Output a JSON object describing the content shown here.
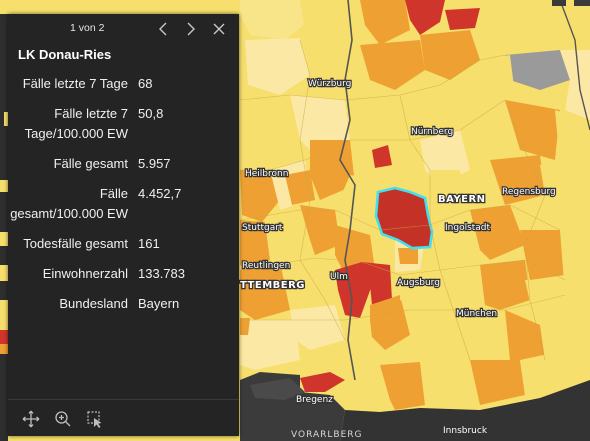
{
  "map": {
    "labels": {
      "wurzburg": "Würzburg",
      "nurnberg": "Nürnberg",
      "heilbronn": "Heilbronn",
      "bayern": "BAYERN",
      "regensburg": "Regensburg",
      "stuttgart": "Stuttgart",
      "ingolstadt": "Ingolstadt",
      "reutlingen": "Reutlingen",
      "ulm": "Ulm",
      "augsburg": "Augsburg",
      "wurttemberg": "TTEMBERG",
      "munchen": "München",
      "bregenz": "Bregenz",
      "vorarlberg": "VORARLBERG",
      "innsbruck": "Innsbruck"
    },
    "colors": {
      "pale": "#fbe8a4",
      "light": "#f6df6c",
      "orange": "#efa032",
      "red": "#d0352b",
      "grey": "#9a9a9a",
      "highlight": "#40e0f0"
    }
  },
  "popup": {
    "pager": "1 von 2",
    "title": "LK Donau-Ries",
    "rows": [
      {
        "key": "Fälle letzte 7 Tage",
        "value": "68"
      },
      {
        "key": "Fälle letzte 7 Tage/100.000 EW",
        "value": "50,8"
      },
      {
        "key": "Fälle gesamt",
        "value": "5.957"
      },
      {
        "key": "Fälle gesamt/100.000 EW",
        "value": "4.452,7"
      },
      {
        "key": "Todesfälle gesamt",
        "value": "161"
      },
      {
        "key": "Einwohnerzahl",
        "value": "133.783"
      },
      {
        "key": "Bundesland",
        "value": "Bayern"
      }
    ]
  }
}
